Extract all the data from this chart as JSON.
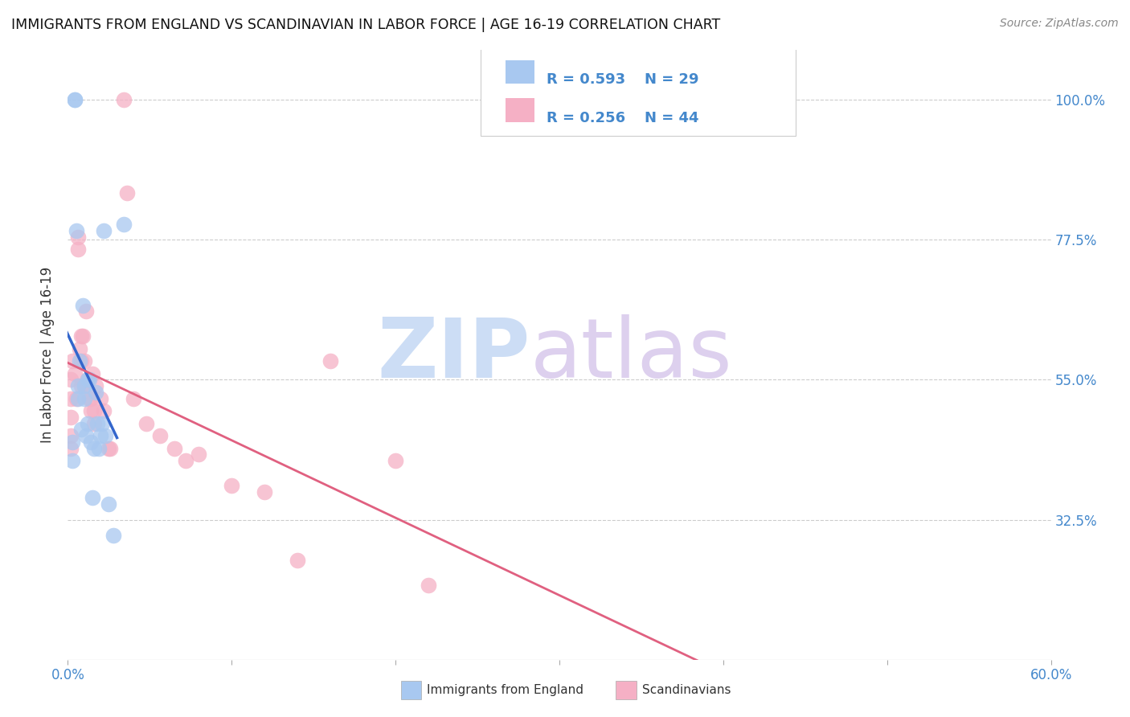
{
  "title": "IMMIGRANTS FROM ENGLAND VS SCANDINAVIAN IN LABOR FORCE | AGE 16-19 CORRELATION CHART",
  "source": "Source: ZipAtlas.com",
  "xlim": [
    0.0,
    0.6
  ],
  "ylim": [
    0.1,
    1.08
  ],
  "yticks": [
    1.0,
    0.775,
    0.55,
    0.325
  ],
  "ytick_labels": [
    "100.0%",
    "77.5%",
    "55.0%",
    "32.5%"
  ],
  "xtick_labels": [
    "0.0%",
    "",
    "",
    "",
    "",
    "",
    "60.0%"
  ],
  "xticks": [
    0.0,
    0.1,
    0.2,
    0.3,
    0.4,
    0.5,
    0.6
  ],
  "england_label": "Immigrants from England",
  "scandinavian_label": "Scandinavians",
  "england_R": "0.593",
  "england_N": "29",
  "scandinavian_R": "0.256",
  "scandinavian_N": "44",
  "england_color": "#a8c8f0",
  "scandinavian_color": "#f5b0c5",
  "england_line_color": "#3366cc",
  "scandinavian_line_color": "#e06080",
  "background_color": "#ffffff",
  "ylabel": "In Labor Force | Age 16-19",
  "england_x": [
    0.003,
    0.003,
    0.004,
    0.004,
    0.005,
    0.006,
    0.006,
    0.007,
    0.008,
    0.009,
    0.01,
    0.01,
    0.011,
    0.012,
    0.012,
    0.013,
    0.014,
    0.015,
    0.016,
    0.017,
    0.018,
    0.019,
    0.02,
    0.021,
    0.022,
    0.023,
    0.025,
    0.028,
    0.034
  ],
  "england_y": [
    0.42,
    0.45,
    1.0,
    1.0,
    0.79,
    0.52,
    0.54,
    0.58,
    0.47,
    0.67,
    0.54,
    0.52,
    0.46,
    0.55,
    0.48,
    0.55,
    0.45,
    0.36,
    0.44,
    0.53,
    0.48,
    0.44,
    0.46,
    0.48,
    0.79,
    0.46,
    0.35,
    0.3,
    0.8
  ],
  "scandinavian_x": [
    0.002,
    0.002,
    0.002,
    0.002,
    0.002,
    0.003,
    0.004,
    0.005,
    0.006,
    0.006,
    0.007,
    0.008,
    0.008,
    0.008,
    0.009,
    0.01,
    0.01,
    0.011,
    0.012,
    0.013,
    0.014,
    0.014,
    0.015,
    0.016,
    0.016,
    0.017,
    0.02,
    0.022,
    0.025,
    0.026,
    0.034,
    0.036,
    0.04,
    0.048,
    0.056,
    0.065,
    0.072,
    0.08,
    0.1,
    0.12,
    0.14,
    0.16,
    0.2,
    0.22
  ],
  "scandinavian_y": [
    0.55,
    0.52,
    0.49,
    0.46,
    0.44,
    0.58,
    0.56,
    0.52,
    0.78,
    0.76,
    0.6,
    0.62,
    0.58,
    0.54,
    0.62,
    0.58,
    0.54,
    0.66,
    0.55,
    0.52,
    0.52,
    0.5,
    0.56,
    0.5,
    0.48,
    0.54,
    0.52,
    0.5,
    0.44,
    0.44,
    1.0,
    0.85,
    0.52,
    0.48,
    0.46,
    0.44,
    0.42,
    0.43,
    0.38,
    0.37,
    0.26,
    0.58,
    0.42,
    0.22
  ]
}
